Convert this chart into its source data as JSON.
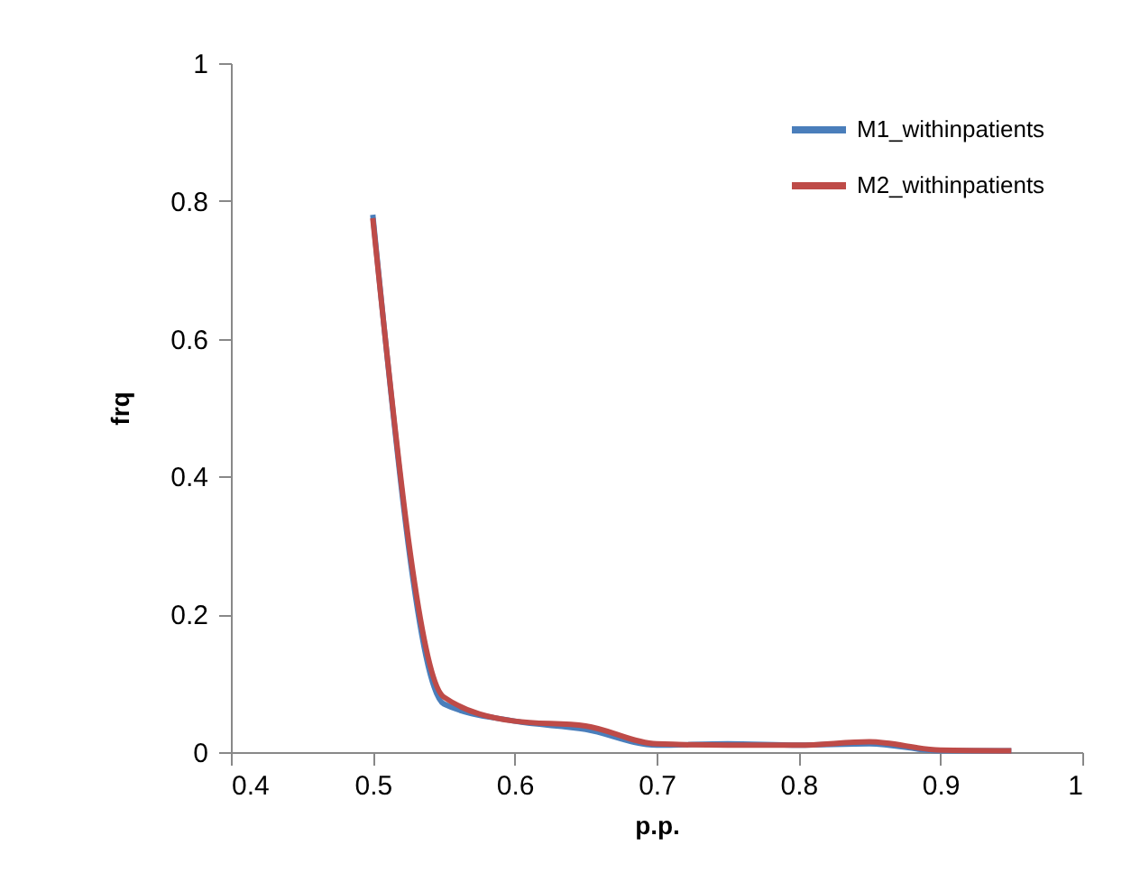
{
  "chart_data": {
    "type": "line",
    "xlabel": "p.p.",
    "ylabel": "frq",
    "x": [
      0.5,
      0.55,
      0.6,
      0.65,
      0.7,
      0.75,
      0.8,
      0.85,
      0.9,
      0.95
    ],
    "series": [
      {
        "name": "M1_withinpatients",
        "color": "#4a7ebb",
        "values": [
          0.78,
          0.07,
          0.045,
          0.033,
          0.01,
          0.012,
          0.01,
          0.012,
          0.002,
          0.002
        ]
      },
      {
        "name": "M2_withinpatients",
        "color": "#be4b48",
        "values": [
          0.775,
          0.08,
          0.045,
          0.038,
          0.012,
          0.01,
          0.01,
          0.015,
          0.003,
          0.002
        ]
      }
    ],
    "xlim": [
      0.4,
      1
    ],
    "xticks": [
      0.4,
      0.5,
      0.6,
      0.7,
      0.8,
      0.9,
      1
    ],
    "ylim": [
      0,
      1
    ],
    "yticks": [
      0,
      0.2,
      0.4,
      0.6,
      0.8,
      1
    ],
    "grid": false,
    "legend": "top right",
    "marker": "none",
    "line_style": "solid"
  }
}
